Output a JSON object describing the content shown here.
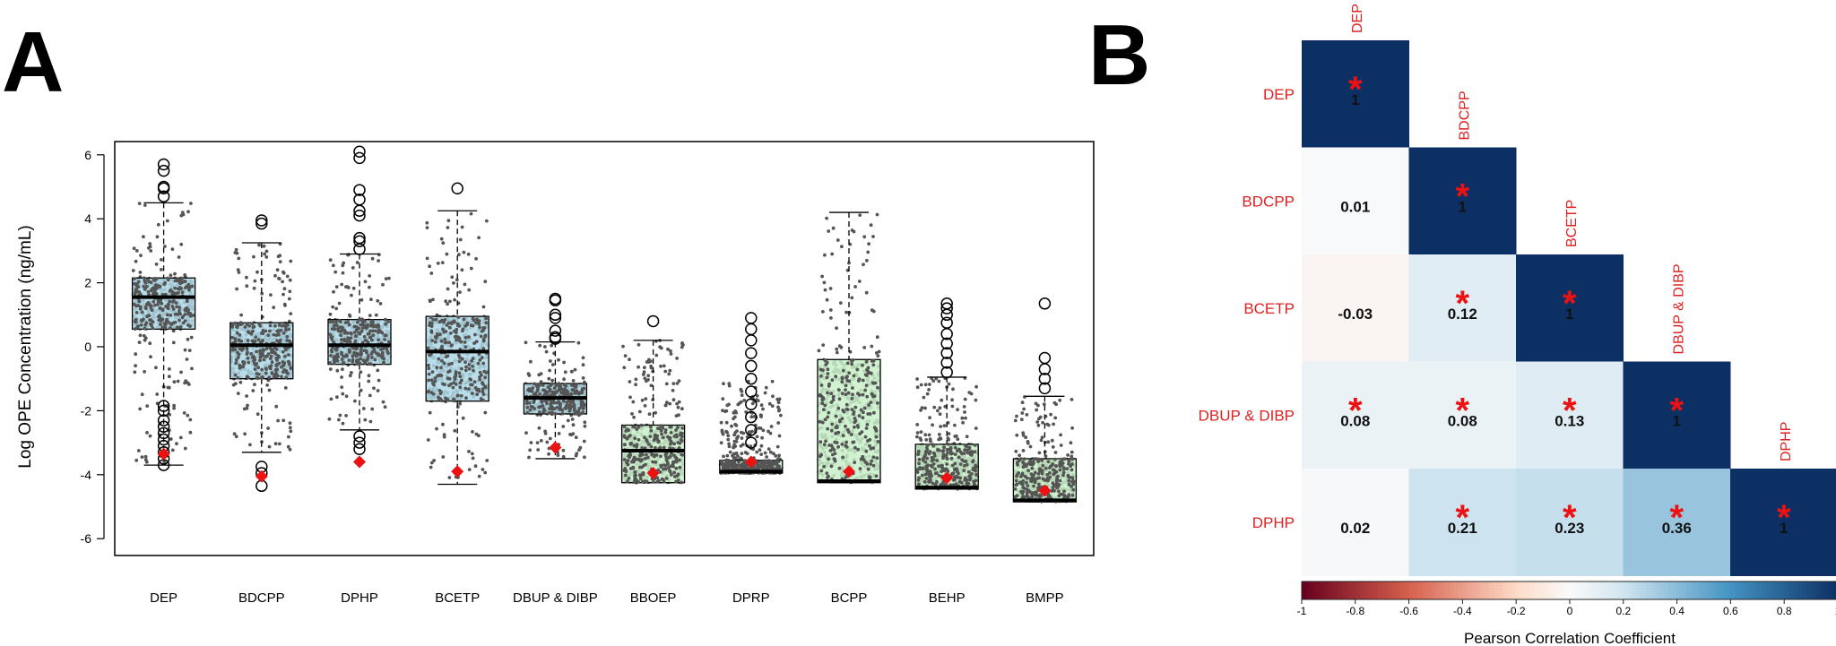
{
  "panels": {
    "a_letter": "A",
    "b_letter": "B"
  },
  "colors": {
    "box_blue": "#add8e6",
    "box_green": "#c8f0c8",
    "point": "#555555",
    "marker": "#ee1111",
    "label_red": "#dd2222",
    "star": "#ee1111"
  },
  "chart_data": [
    {
      "type": "box",
      "title": "",
      "xlabel": "",
      "ylabel": "Log OPE Concentration (ng/mL)",
      "ylim": [
        -7,
        6.3
      ],
      "yticks": [
        -6,
        -4,
        -2,
        0,
        2,
        4,
        6
      ],
      "ytick_labels": [
        "-6",
        "-4",
        "-2",
        "0",
        "2",
        "4",
        "6"
      ],
      "categories": [
        "DEP",
        "BDCPP",
        "DPHP",
        "BCETP",
        "DBUP & DIBP",
        "BBOEP",
        "DPRP",
        "BCPP",
        "BEHP",
        "BMPP"
      ],
      "box_fill": [
        "blue",
        "blue",
        "blue",
        "blue",
        "blue",
        "green",
        "green",
        "green",
        "green",
        "green"
      ],
      "boxes": [
        {
          "lw": -3.7,
          "q1": 0.55,
          "med": 1.55,
          "q3": 2.15,
          "uw": 4.5,
          "marker": -3.35,
          "lod": -3.7,
          "outliers": [
            5.7,
            5.5,
            5.0,
            4.95,
            4.7,
            -1.85,
            -2.0,
            -2.3,
            -2.5,
            -2.7,
            -2.9,
            -3.1,
            -3.3,
            -3.5,
            -3.7
          ]
        },
        {
          "lw": -3.3,
          "q1": -1.0,
          "med": 0.05,
          "q3": 0.75,
          "uw": 3.25,
          "marker": -4.05,
          "lod": -4.4,
          "outliers": [
            3.95,
            3.85,
            -3.75,
            -3.95,
            -4.35
          ]
        },
        {
          "lw": -2.6,
          "q1": -0.55,
          "med": 0.05,
          "q3": 0.85,
          "uw": 2.9,
          "marker": -3.6,
          "lod": -3.9,
          "outliers": [
            6.1,
            5.9,
            4.9,
            4.6,
            4.25,
            4.1,
            3.4,
            3.3,
            3.05,
            -2.8,
            -3.0,
            -3.2
          ]
        },
        {
          "lw": -4.3,
          "q1": -1.7,
          "med": -0.15,
          "q3": 0.95,
          "uw": 4.25,
          "marker": -3.9,
          "lod": -4.3,
          "outliers": [
            4.95
          ]
        },
        {
          "lw": -3.5,
          "q1": -2.1,
          "med": -1.6,
          "q3": -1.15,
          "uw": 0.15,
          "marker": -3.15,
          "lod": -3.5,
          "outliers": [
            1.5,
            1.45,
            1.0,
            0.9,
            0.5,
            0.3,
            0.25
          ]
        },
        {
          "lw": -4.25,
          "q1": -4.25,
          "med": -3.25,
          "q3": -2.45,
          "uw": 0.2,
          "marker": -3.95,
          "lod": -4.25,
          "outliers": [
            0.8
          ]
        },
        {
          "lw": -3.95,
          "q1": -3.95,
          "med": -3.9,
          "q3": -3.55,
          "uw": -3.55,
          "marker": -3.6,
          "lod": -3.95,
          "outliers": [
            0.9,
            0.55,
            0.2,
            -0.2,
            -0.6,
            -1.0,
            -1.4,
            -1.8,
            -2.2,
            -2.6,
            -3.0
          ]
        },
        {
          "lw": -4.25,
          "q1": -4.25,
          "med": -4.2,
          "q3": -0.4,
          "uw": 4.2,
          "marker": -3.9,
          "lod": -4.25,
          "outliers": []
        },
        {
          "lw": -4.45,
          "q1": -4.45,
          "med": -4.4,
          "q3": -3.05,
          "uw": -0.95,
          "marker": -4.1,
          "lod": -4.45,
          "outliers": [
            1.35,
            1.2,
            1.0,
            0.75,
            0.4,
            0.1,
            -0.2,
            -0.5,
            -0.8
          ]
        },
        {
          "lw": -4.85,
          "q1": -4.85,
          "med": -4.8,
          "q3": -3.5,
          "uw": -1.55,
          "marker": -4.5,
          "lod": -4.85,
          "outliers": [
            1.35,
            -0.35,
            -0.7,
            -1.0,
            -1.3
          ]
        }
      ]
    },
    {
      "type": "heatmap",
      "title": "",
      "labels": [
        "DEP",
        "BDCPP",
        "BCETP",
        "DBUP & DIBP",
        "DPHP"
      ],
      "values": [
        [
          1,
          null,
          null,
          null,
          null
        ],
        [
          0.01,
          1,
          null,
          null,
          null
        ],
        [
          -0.03,
          0.12,
          1,
          null,
          null
        ],
        [
          0.08,
          0.08,
          0.13,
          1,
          null
        ],
        [
          0.02,
          0.21,
          0.23,
          0.36,
          1
        ]
      ],
      "value_labels": [
        [
          "1",
          "",
          "",
          "",
          ""
        ],
        [
          "0.01",
          "1",
          "",
          "",
          ""
        ],
        [
          "-0.03",
          "0.12",
          "1",
          "",
          ""
        ],
        [
          "0.08",
          "0.08",
          "0.13",
          "1",
          ""
        ],
        [
          "0.02",
          "0.21",
          "0.23",
          "0.36",
          "1"
        ]
      ],
      "significant": [
        [
          true,
          false,
          false,
          false,
          false
        ],
        [
          false,
          true,
          false,
          false,
          false
        ],
        [
          false,
          true,
          true,
          false,
          false
        ],
        [
          true,
          true,
          true,
          true,
          false
        ],
        [
          false,
          true,
          true,
          true,
          true
        ]
      ],
      "star": "*",
      "colorbar": {
        "label": "Pearson Correlation Coefficient",
        "range": [
          -1,
          1
        ],
        "ticks": [
          -1,
          -0.8,
          -0.6,
          -0.4,
          -0.2,
          0,
          0.2,
          0.4,
          0.6,
          0.8,
          1
        ],
        "tick_labels": [
          "-1",
          "-0.8",
          "-0.6",
          "-0.4",
          "-0.2",
          "0",
          "0.2",
          "0.4",
          "0.6",
          "0.8",
          "1"
        ]
      }
    }
  ]
}
